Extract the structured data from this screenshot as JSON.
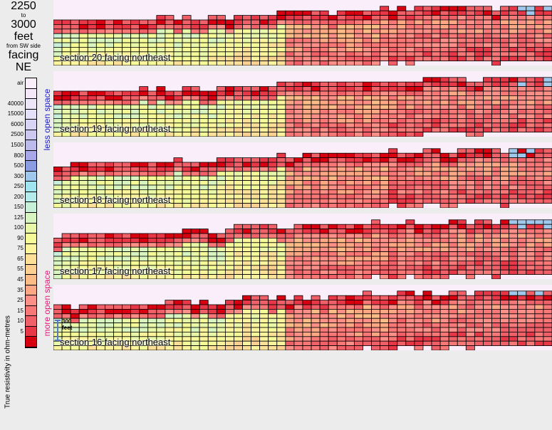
{
  "title": {
    "line1": "2250",
    "line2": "to",
    "line3": "3000",
    "line4": "feet",
    "line5": "from SW side",
    "line6": "facing",
    "line7": "NE"
  },
  "scale": {
    "axis_label": "True resistivity in ohm-metres",
    "less_label": "less open space",
    "more_label": "more open space",
    "levels": [
      {
        "label": "air",
        "color": "#fbeefb"
      },
      {
        "label": "",
        "color": "#f4e8f8"
      },
      {
        "label": "40000",
        "color": "#ece6f8"
      },
      {
        "label": "15000",
        "color": "#e4e0f8"
      },
      {
        "label": "6000",
        "color": "#d8d4f4"
      },
      {
        "label": "2500",
        "color": "#ccc8f0"
      },
      {
        "label": "1500",
        "color": "#bcbcec"
      },
      {
        "label": "800",
        "color": "#a8a8e8"
      },
      {
        "label": "500",
        "color": "#8c9ce0"
      },
      {
        "label": "300",
        "color": "#a0c8ec"
      },
      {
        "label": "250",
        "color": "#a0e4f0"
      },
      {
        "label": "200",
        "color": "#b4ecec"
      },
      {
        "label": "150",
        "color": "#c8f0d8"
      },
      {
        "label": "125",
        "color": "#d8f4c0"
      },
      {
        "label": "100",
        "color": "#e8f8a8"
      },
      {
        "label": "90",
        "color": "#f4fa98"
      },
      {
        "label": "75",
        "color": "#fcf49c"
      },
      {
        "label": "65",
        "color": "#fce098"
      },
      {
        "label": "55",
        "color": "#fcd090"
      },
      {
        "label": "45",
        "color": "#fcbc88"
      },
      {
        "label": "35",
        "color": "#fca884"
      },
      {
        "label": "25",
        "color": "#fc9088"
      },
      {
        "label": "15",
        "color": "#f87878"
      },
      {
        "label": "10",
        "color": "#f06068"
      },
      {
        "label": "5",
        "color": "#e83848"
      },
      {
        "label": "",
        "color": "#d80010"
      }
    ]
  },
  "scale_marker": {
    "label_line1": "300",
    "label_line2": "feet"
  },
  "sections": [
    {
      "label": "section 20 facing northeast",
      "seed": 20
    },
    {
      "label": "section 19 facing northeast",
      "seed": 19
    },
    {
      "label": "section 18 facing northeast",
      "seed": 18
    },
    {
      "label": "section 17 facing northeast",
      "seed": 17
    },
    {
      "label": "section 16 facing northeast",
      "seed": 16
    }
  ]
}
